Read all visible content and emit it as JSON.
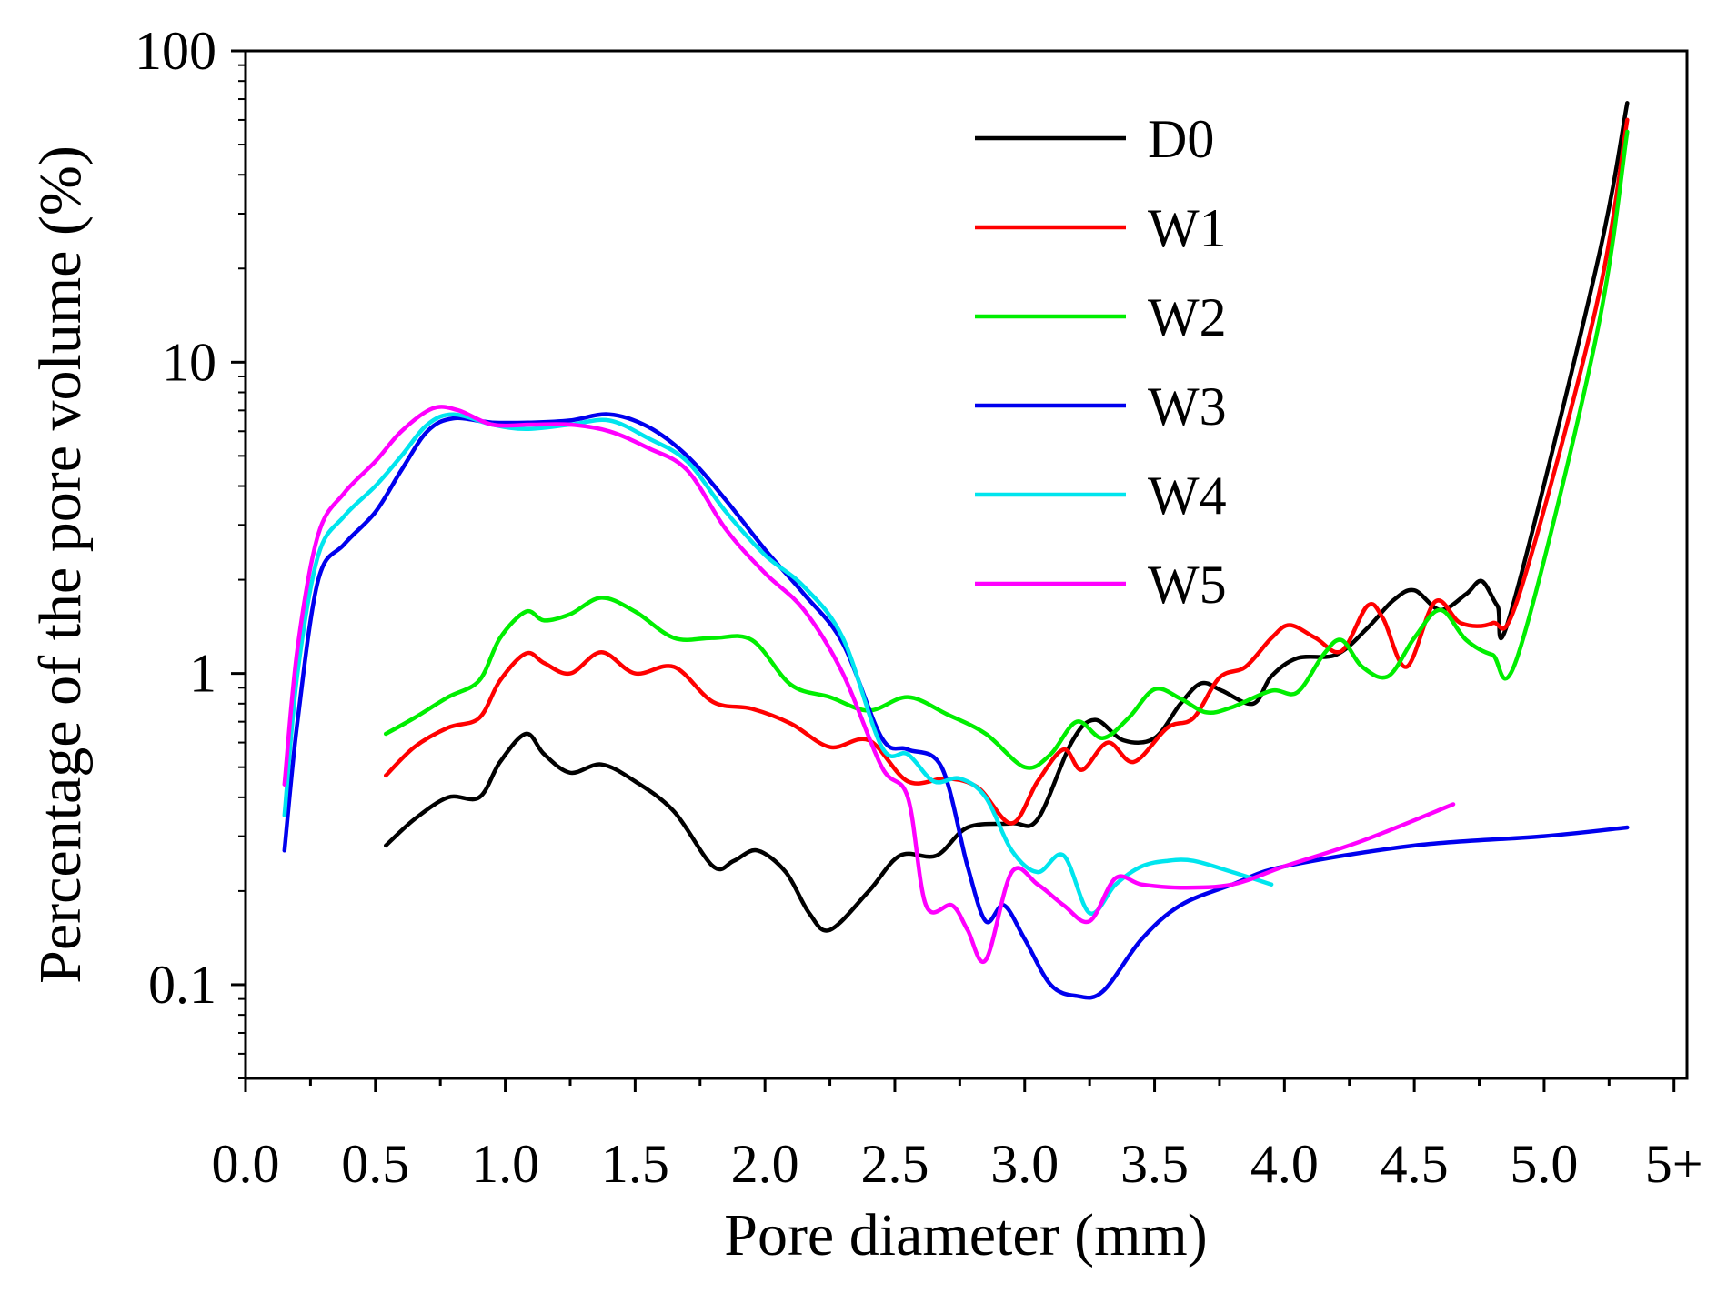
{
  "chart_data": {
    "type": "line",
    "title": "",
    "xlabel": "Pore diameter (mm)",
    "ylabel": "Percentage of the pore volume (%)",
    "yscale": "log",
    "xlim": [
      0,
      5.55
    ],
    "ylim": [
      0.05,
      100
    ],
    "x_ticks": [
      0.0,
      0.5,
      1.0,
      1.5,
      2.0,
      2.5,
      3.0,
      3.5,
      4.0,
      4.5,
      5.0,
      5.5
    ],
    "x_tick_labels": [
      "0.0",
      "0.5",
      "1.0",
      "1.5",
      "2.0",
      "2.5",
      "3.0",
      "3.5",
      "4.0",
      "4.5",
      "5.0",
      "5+"
    ],
    "y_ticks": [
      0.1,
      1,
      10,
      100
    ],
    "y_tick_labels": [
      "0.1",
      "1",
      "10",
      "100"
    ],
    "legend_position": "top-right",
    "series": [
      {
        "name": "D0",
        "color": "#000000",
        "points": [
          [
            0.54,
            0.28
          ],
          [
            0.65,
            0.34
          ],
          [
            0.78,
            0.4
          ],
          [
            0.9,
            0.4
          ],
          [
            0.98,
            0.52
          ],
          [
            1.08,
            0.64
          ],
          [
            1.15,
            0.55
          ],
          [
            1.25,
            0.48
          ],
          [
            1.37,
            0.51
          ],
          [
            1.5,
            0.45
          ],
          [
            1.65,
            0.36
          ],
          [
            1.8,
            0.24
          ],
          [
            1.88,
            0.25
          ],
          [
            1.97,
            0.27
          ],
          [
            2.08,
            0.23
          ],
          [
            2.17,
            0.17
          ],
          [
            2.25,
            0.15
          ],
          [
            2.4,
            0.2
          ],
          [
            2.52,
            0.26
          ],
          [
            2.66,
            0.26
          ],
          [
            2.78,
            0.32
          ],
          [
            2.95,
            0.33
          ],
          [
            3.05,
            0.34
          ],
          [
            3.18,
            0.6
          ],
          [
            3.27,
            0.71
          ],
          [
            3.38,
            0.61
          ],
          [
            3.5,
            0.62
          ],
          [
            3.6,
            0.8
          ],
          [
            3.68,
            0.93
          ],
          [
            3.76,
            0.88
          ],
          [
            3.88,
            0.8
          ],
          [
            3.95,
            0.98
          ],
          [
            4.05,
            1.12
          ],
          [
            4.2,
            1.15
          ],
          [
            4.32,
            1.4
          ],
          [
            4.42,
            1.72
          ],
          [
            4.5,
            1.85
          ],
          [
            4.6,
            1.6
          ],
          [
            4.7,
            1.8
          ],
          [
            4.76,
            1.98
          ],
          [
            4.82,
            1.65
          ],
          [
            4.87,
            1.55
          ],
          [
            5.2,
            20.0
          ],
          [
            5.32,
            68.0
          ]
        ]
      },
      {
        "name": "W1",
        "color": "#ff0000",
        "points": [
          [
            0.54,
            0.47
          ],
          [
            0.65,
            0.58
          ],
          [
            0.78,
            0.67
          ],
          [
            0.9,
            0.72
          ],
          [
            0.98,
            0.95
          ],
          [
            1.08,
            1.16
          ],
          [
            1.15,
            1.08
          ],
          [
            1.25,
            1.0
          ],
          [
            1.37,
            1.17
          ],
          [
            1.5,
            1.0
          ],
          [
            1.65,
            1.05
          ],
          [
            1.8,
            0.81
          ],
          [
            1.95,
            0.77
          ],
          [
            2.1,
            0.69
          ],
          [
            2.25,
            0.58
          ],
          [
            2.4,
            0.61
          ],
          [
            2.55,
            0.45
          ],
          [
            2.7,
            0.46
          ],
          [
            2.82,
            0.43
          ],
          [
            2.95,
            0.33
          ],
          [
            3.05,
            0.45
          ],
          [
            3.15,
            0.57
          ],
          [
            3.22,
            0.49
          ],
          [
            3.32,
            0.6
          ],
          [
            3.42,
            0.52
          ],
          [
            3.55,
            0.67
          ],
          [
            3.65,
            0.72
          ],
          [
            3.75,
            0.97
          ],
          [
            3.85,
            1.05
          ],
          [
            3.95,
            1.3
          ],
          [
            4.02,
            1.43
          ],
          [
            4.12,
            1.3
          ],
          [
            4.22,
            1.18
          ],
          [
            4.32,
            1.65
          ],
          [
            4.38,
            1.5
          ],
          [
            4.47,
            1.05
          ],
          [
            4.58,
            1.7
          ],
          [
            4.68,
            1.45
          ],
          [
            4.8,
            1.45
          ],
          [
            4.9,
            1.75
          ],
          [
            5.2,
            15.0
          ],
          [
            5.32,
            60.0
          ]
        ]
      },
      {
        "name": "W2",
        "color": "#00ee00",
        "points": [
          [
            0.54,
            0.64
          ],
          [
            0.65,
            0.72
          ],
          [
            0.78,
            0.84
          ],
          [
            0.9,
            0.95
          ],
          [
            0.98,
            1.3
          ],
          [
            1.08,
            1.58
          ],
          [
            1.15,
            1.48
          ],
          [
            1.25,
            1.55
          ],
          [
            1.37,
            1.75
          ],
          [
            1.5,
            1.58
          ],
          [
            1.65,
            1.3
          ],
          [
            1.8,
            1.3
          ],
          [
            1.95,
            1.28
          ],
          [
            2.1,
            0.92
          ],
          [
            2.25,
            0.84
          ],
          [
            2.4,
            0.76
          ],
          [
            2.55,
            0.84
          ],
          [
            2.7,
            0.74
          ],
          [
            2.85,
            0.64
          ],
          [
            3.0,
            0.5
          ],
          [
            3.1,
            0.55
          ],
          [
            3.2,
            0.7
          ],
          [
            3.3,
            0.62
          ],
          [
            3.4,
            0.72
          ],
          [
            3.5,
            0.89
          ],
          [
            3.6,
            0.83
          ],
          [
            3.7,
            0.75
          ],
          [
            3.8,
            0.78
          ],
          [
            3.95,
            0.88
          ],
          [
            4.05,
            0.87
          ],
          [
            4.15,
            1.15
          ],
          [
            4.22,
            1.28
          ],
          [
            4.3,
            1.05
          ],
          [
            4.4,
            0.98
          ],
          [
            4.5,
            1.3
          ],
          [
            4.6,
            1.6
          ],
          [
            4.7,
            1.28
          ],
          [
            4.8,
            1.15
          ],
          [
            4.9,
            1.15
          ],
          [
            5.2,
            12.0
          ],
          [
            5.32,
            55.0
          ]
        ]
      },
      {
        "name": "W3",
        "color": "#0000ee",
        "points": [
          [
            0.15,
            0.27
          ],
          [
            0.2,
            0.7
          ],
          [
            0.28,
            2.0
          ],
          [
            0.38,
            2.6
          ],
          [
            0.5,
            3.3
          ],
          [
            0.6,
            4.5
          ],
          [
            0.7,
            6.0
          ],
          [
            0.8,
            6.6
          ],
          [
            0.95,
            6.4
          ],
          [
            1.1,
            6.4
          ],
          [
            1.25,
            6.5
          ],
          [
            1.4,
            6.8
          ],
          [
            1.55,
            6.2
          ],
          [
            1.7,
            5.0
          ],
          [
            1.85,
            3.6
          ],
          [
            2.0,
            2.5
          ],
          [
            2.15,
            1.8
          ],
          [
            2.3,
            1.25
          ],
          [
            2.45,
            0.62
          ],
          [
            2.55,
            0.57
          ],
          [
            2.68,
            0.5
          ],
          [
            2.78,
            0.24
          ],
          [
            2.85,
            0.16
          ],
          [
            2.92,
            0.18
          ],
          [
            3.0,
            0.14
          ],
          [
            3.1,
            0.1
          ],
          [
            3.2,
            0.092
          ],
          [
            3.3,
            0.095
          ],
          [
            3.45,
            0.14
          ],
          [
            3.6,
            0.18
          ],
          [
            3.8,
            0.21
          ],
          [
            4.0,
            0.24
          ],
          [
            4.5,
            0.28
          ],
          [
            5.0,
            0.3
          ],
          [
            5.32,
            0.32
          ]
        ]
      },
      {
        "name": "W4",
        "color": "#00e5ee",
        "points": [
          [
            0.15,
            0.35
          ],
          [
            0.2,
            1.0
          ],
          [
            0.28,
            2.4
          ],
          [
            0.38,
            3.2
          ],
          [
            0.5,
            4.0
          ],
          [
            0.6,
            5.0
          ],
          [
            0.7,
            6.3
          ],
          [
            0.8,
            6.8
          ],
          [
            0.95,
            6.3
          ],
          [
            1.08,
            6.1
          ],
          [
            1.25,
            6.3
          ],
          [
            1.4,
            6.5
          ],
          [
            1.55,
            5.7
          ],
          [
            1.7,
            4.8
          ],
          [
            1.85,
            3.3
          ],
          [
            2.0,
            2.4
          ],
          [
            2.15,
            1.9
          ],
          [
            2.3,
            1.3
          ],
          [
            2.45,
            0.58
          ],
          [
            2.55,
            0.55
          ],
          [
            2.65,
            0.45
          ],
          [
            2.75,
            0.46
          ],
          [
            2.85,
            0.4
          ],
          [
            2.95,
            0.27
          ],
          [
            3.05,
            0.23
          ],
          [
            3.15,
            0.26
          ],
          [
            3.25,
            0.17
          ],
          [
            3.35,
            0.21
          ],
          [
            3.45,
            0.24
          ],
          [
            3.55,
            0.25
          ],
          [
            3.65,
            0.25
          ],
          [
            3.8,
            0.23
          ],
          [
            3.95,
            0.21
          ]
        ]
      },
      {
        "name": "W5",
        "color": "#ff00ff",
        "points": [
          [
            0.15,
            0.44
          ],
          [
            0.2,
            1.2
          ],
          [
            0.28,
            2.8
          ],
          [
            0.38,
            3.8
          ],
          [
            0.5,
            4.8
          ],
          [
            0.6,
            6.0
          ],
          [
            0.72,
            7.1
          ],
          [
            0.82,
            7.0
          ],
          [
            0.95,
            6.3
          ],
          [
            1.1,
            6.3
          ],
          [
            1.25,
            6.3
          ],
          [
            1.4,
            6.0
          ],
          [
            1.55,
            5.3
          ],
          [
            1.7,
            4.5
          ],
          [
            1.85,
            2.9
          ],
          [
            2.0,
            2.1
          ],
          [
            2.15,
            1.6
          ],
          [
            2.3,
            1.0
          ],
          [
            2.45,
            0.5
          ],
          [
            2.55,
            0.4
          ],
          [
            2.62,
            0.18
          ],
          [
            2.72,
            0.18
          ],
          [
            2.78,
            0.15
          ],
          [
            2.85,
            0.12
          ],
          [
            2.95,
            0.23
          ],
          [
            3.05,
            0.21
          ],
          [
            3.15,
            0.18
          ],
          [
            3.25,
            0.16
          ],
          [
            3.35,
            0.22
          ],
          [
            3.45,
            0.21
          ],
          [
            3.6,
            0.205
          ],
          [
            3.8,
            0.21
          ],
          [
            4.0,
            0.24
          ],
          [
            4.3,
            0.29
          ],
          [
            4.65,
            0.38
          ]
        ]
      }
    ]
  }
}
